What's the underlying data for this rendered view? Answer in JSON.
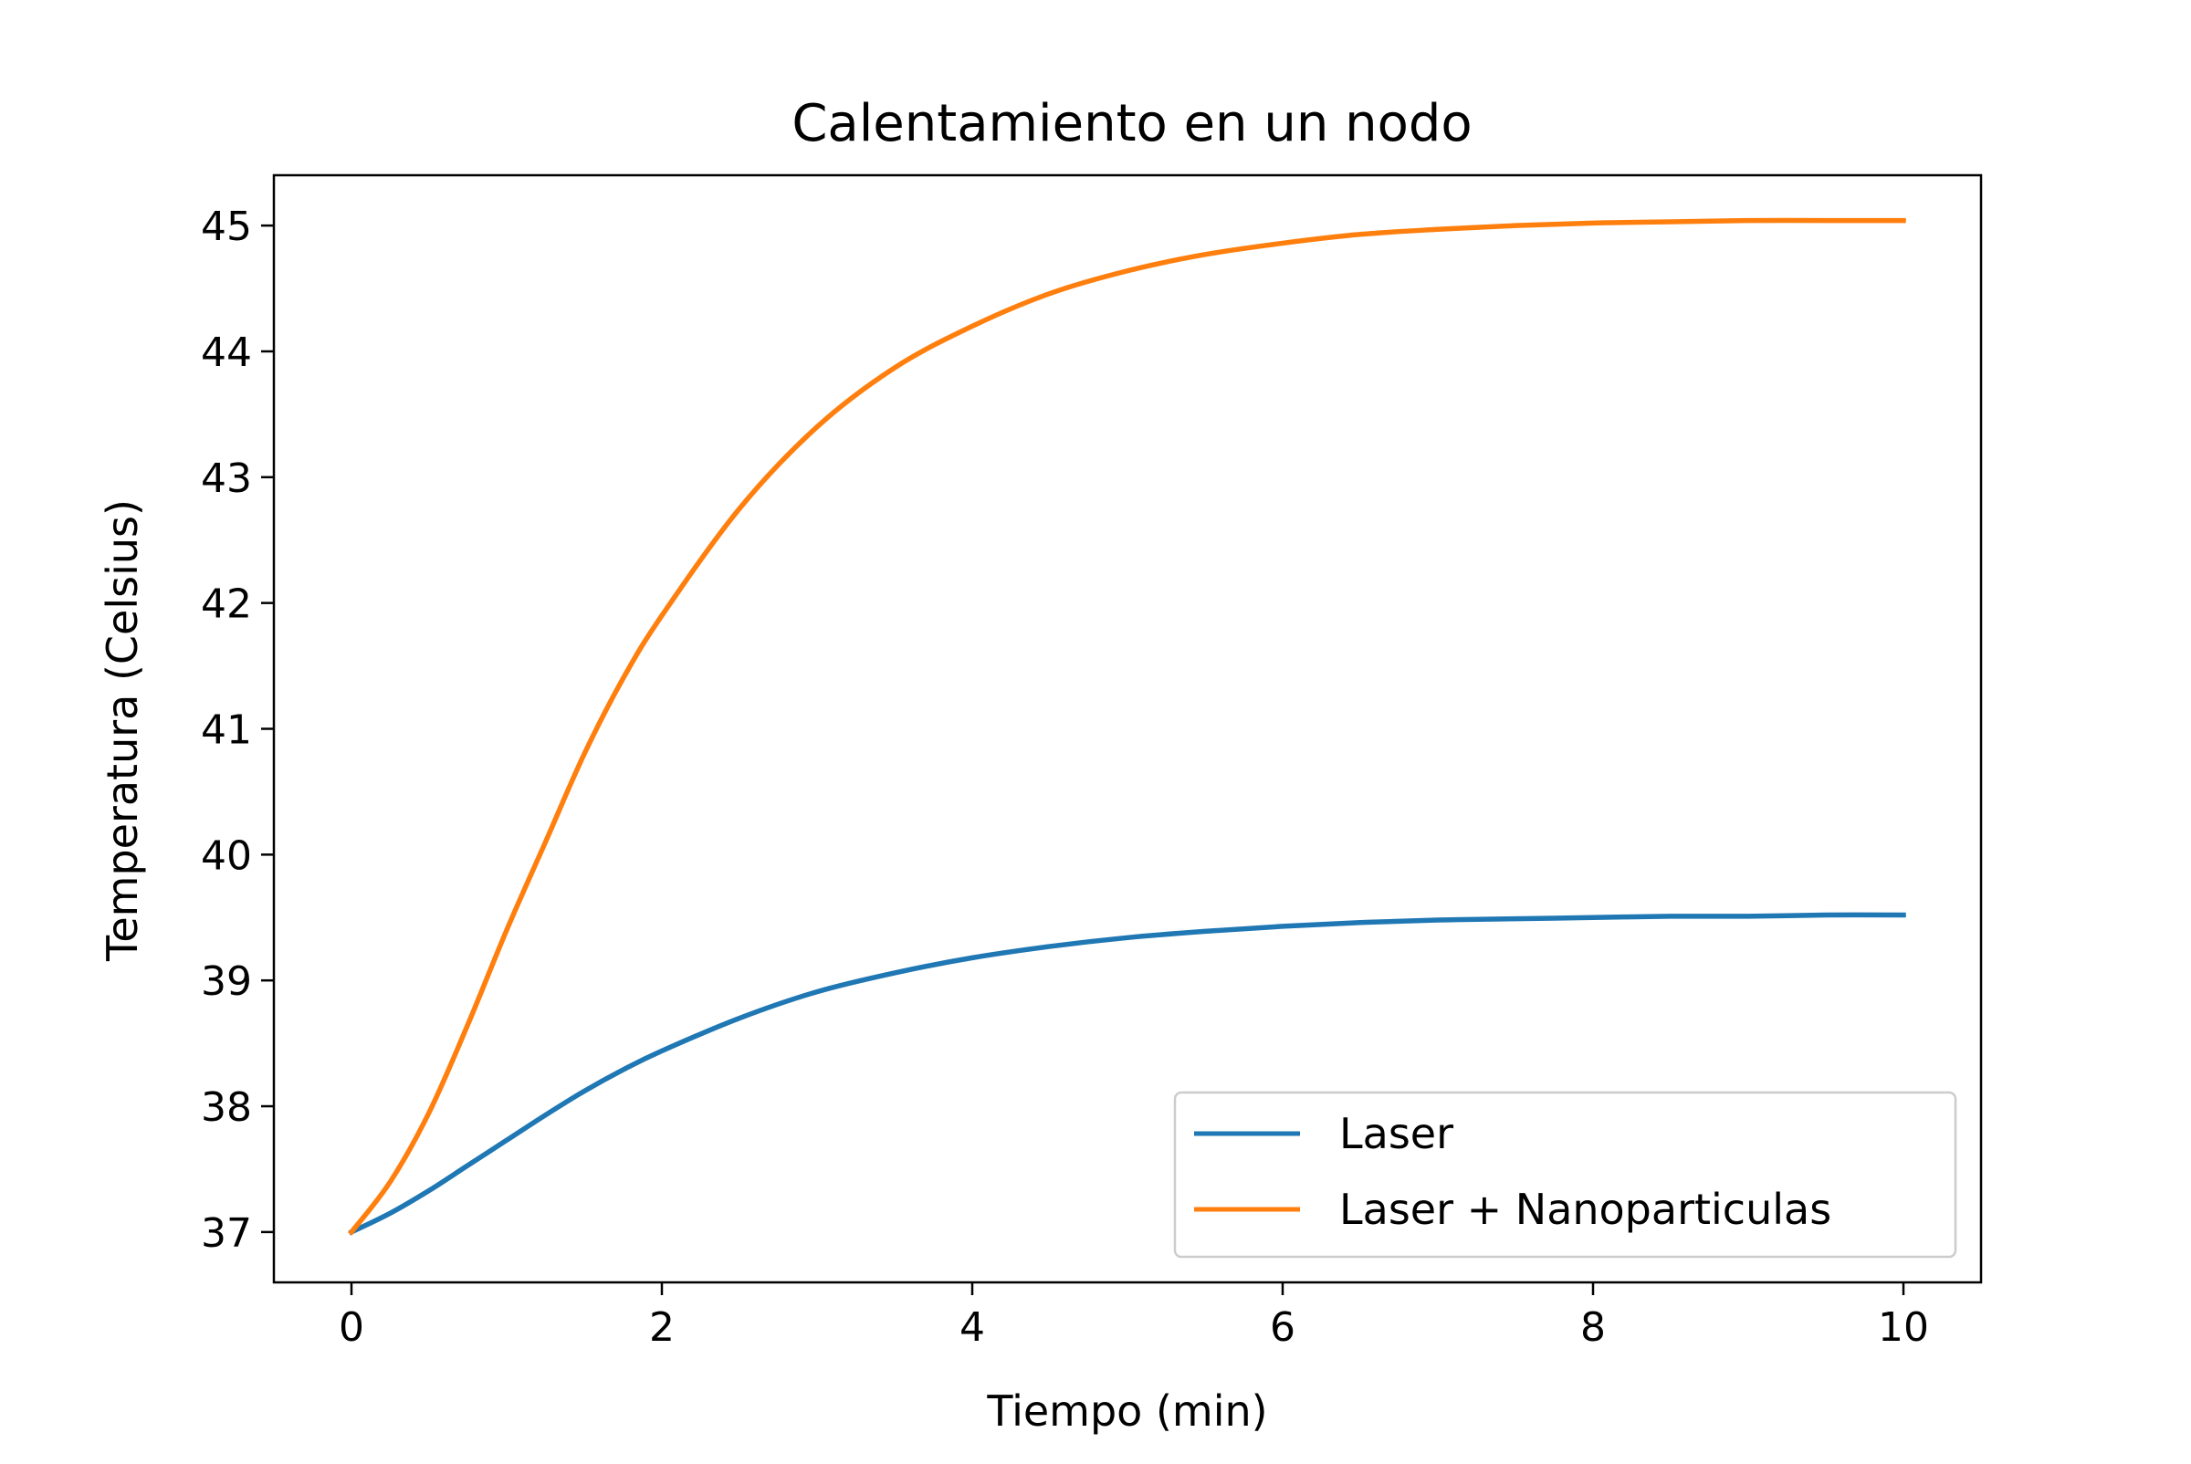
{
  "chart_data": {
    "type": "line",
    "title": "Calentamiento en un nodo",
    "xlabel": "Tiempo (min)",
    "ylabel": "Temperatura (Celsius)",
    "xlim": [
      -0.5,
      10.5
    ],
    "ylim": [
      36.6,
      45.4
    ],
    "xticks": [
      0,
      2,
      4,
      6,
      8,
      10
    ],
    "xtick_labels": [
      "0",
      "2",
      "4",
      "6",
      "8",
      "10"
    ],
    "yticks": [
      37,
      38,
      39,
      40,
      41,
      42,
      43,
      44,
      45
    ],
    "ytick_labels": [
      "37",
      "38",
      "39",
      "40",
      "41",
      "42",
      "43",
      "44",
      "45"
    ],
    "grid": false,
    "legend_position": "lower right",
    "x": [
      0,
      0.25,
      0.5,
      0.75,
      1,
      1.25,
      1.5,
      1.75,
      2,
      2.5,
      3,
      3.5,
      4,
      4.5,
      5,
      5.5,
      6,
      6.5,
      7,
      7.5,
      8,
      8.5,
      9,
      9.5,
      10
    ],
    "series": [
      {
        "name": "Laser",
        "color": "#1f77b4",
        "values": [
          37.0,
          37.15,
          37.33,
          37.53,
          37.73,
          37.93,
          38.12,
          38.29,
          38.44,
          38.7,
          38.91,
          39.06,
          39.18,
          39.27,
          39.34,
          39.39,
          39.43,
          39.46,
          39.48,
          39.49,
          39.5,
          39.51,
          39.51,
          39.52,
          39.52
        ]
      },
      {
        "name": "Laser + Nanoparticulas",
        "color": "#ff7f0e",
        "values": [
          37.0,
          37.4,
          37.95,
          38.65,
          39.4,
          40.1,
          40.8,
          41.4,
          41.9,
          42.75,
          43.4,
          43.87,
          44.2,
          44.46,
          44.64,
          44.77,
          44.86,
          44.93,
          44.97,
          45.0,
          45.02,
          45.03,
          45.04,
          45.04,
          45.04
        ]
      }
    ]
  }
}
